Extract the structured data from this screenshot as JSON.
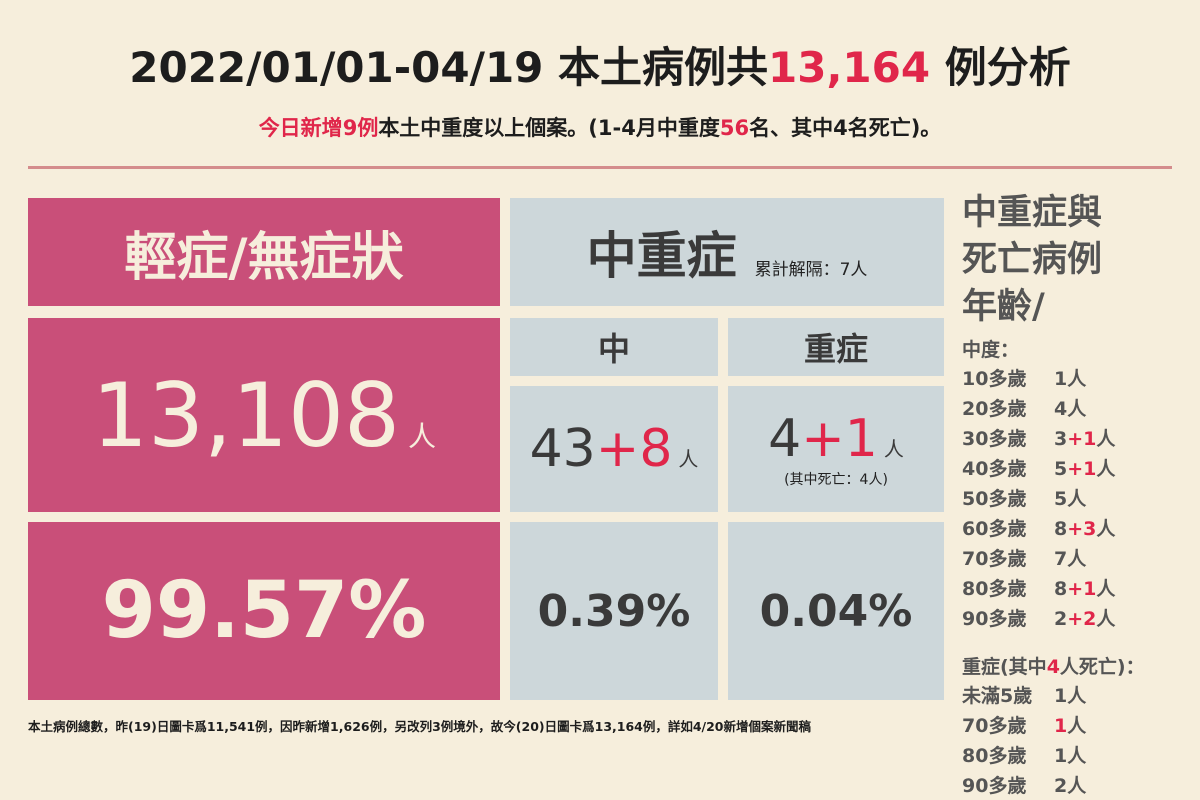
{
  "header": {
    "title_prefix": "2022/01/01-04/19 本土病例共",
    "title_total": "13,164",
    "title_suffix": " 例分析",
    "sub_new_prefix": "今日新增",
    "sub_new_count": "9",
    "sub_new_unit": "例",
    "sub_mid": "本土中重度以上個案。(1-4月中重度",
    "sub_severe_total": "56",
    "sub_end": "名、其中4名死亡)。"
  },
  "mild": {
    "label": "輕症/無症狀",
    "count": "13,108",
    "unit": "人",
    "percent": "99.57%"
  },
  "severe_group": {
    "label": "中重症",
    "released_note": "累計解隔：7人",
    "moderate": {
      "label": "中",
      "base": "43",
      "added": "+8",
      "unit": "人",
      "percent": "0.39%"
    },
    "severe": {
      "label": "重症",
      "base": "4",
      "added": "+1",
      "unit": "人",
      "note": "(其中死亡：4人)",
      "percent": "0.04%"
    }
  },
  "footnote": "本土病例總數，昨(19)日圖卡爲11,541例，因昨新增1,626例，另改列3例境外，故今(20)日圖卡爲13,164例，詳如4/20新增個案新聞稿",
  "side": {
    "title_lines": [
      "中重症與",
      "死亡病例",
      "年齡/"
    ],
    "moderate_heading": "中度：",
    "moderate_ages": [
      {
        "age": "10多歲",
        "base": "1",
        "added": "",
        "unit": "人"
      },
      {
        "age": "20多歲",
        "base": "4",
        "added": "",
        "unit": "人"
      },
      {
        "age": "30多歲",
        "base": "3",
        "added": "+1",
        "unit": "人"
      },
      {
        "age": "40多歲",
        "base": "5",
        "added": "+1",
        "unit": "人"
      },
      {
        "age": "50多歲",
        "base": "5",
        "added": "",
        "unit": "人"
      },
      {
        "age": "60多歲",
        "base": "8",
        "added": "+3",
        "unit": "人"
      },
      {
        "age": "70多歲",
        "base": "7",
        "added": "",
        "unit": "人"
      },
      {
        "age": "80多歲",
        "base": "8",
        "added": "+1",
        "unit": "人"
      },
      {
        "age": "90多歲",
        "base": "2",
        "added": "+2",
        "unit": "人"
      }
    ],
    "severe_heading_prefix": "重症(其中",
    "severe_heading_count": "4",
    "severe_heading_suffix": "人死亡)：",
    "severe_ages": [
      {
        "age": "未滿5歲",
        "base": "1",
        "red": false,
        "unit": "人"
      },
      {
        "age": "70多歲",
        "base": "1",
        "red": true,
        "unit": "人"
      },
      {
        "age": "80多歲",
        "base": "1",
        "red": false,
        "unit": "人"
      },
      {
        "age": "90多歲",
        "base": "2",
        "red": false,
        "unit": "人"
      }
    ]
  },
  "colors": {
    "pink": "#c94f79",
    "grey": "#cdd7da",
    "background": "#f6eedc",
    "accent_red": "#e0264a"
  }
}
